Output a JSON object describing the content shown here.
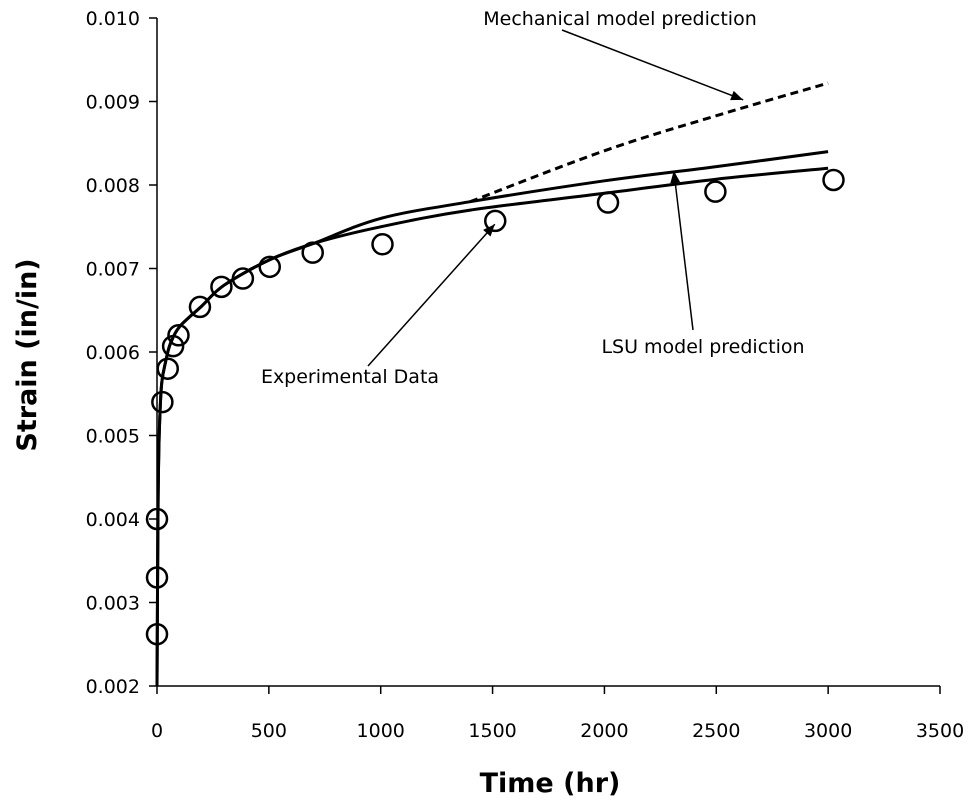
{
  "chart_data": {
    "type": "scatter",
    "title": "",
    "xlabel": "Time (hr)",
    "ylabel": "Strain (in/in)",
    "xlim": [
      0,
      3500
    ],
    "ylim": [
      0.002,
      0.01
    ],
    "x_ticks": [
      "0",
      "500",
      "1000",
      "1500",
      "2000",
      "2500",
      "3000",
      "3500"
    ],
    "y_ticks": [
      "0.002",
      "0.003",
      "0.004",
      "0.005",
      "0.006",
      "0.007",
      "0.008",
      "0.009",
      "0.010"
    ],
    "grid": false,
    "legend": "none",
    "series": [
      {
        "kind": "scatter",
        "marker": "open-circle",
        "x": [
          0,
          0,
          0,
          24,
          48,
          72,
          96,
          192,
          288,
          384,
          504,
          696,
          1008,
          1512,
          2016,
          2496,
          3024
        ],
        "y": [
          0.00262,
          0.0033,
          0.004,
          0.0054,
          0.0058,
          0.00607,
          0.0062,
          0.00654,
          0.00678,
          0.00688,
          0.00702,
          0.00719,
          0.00729,
          0.00757,
          0.00779,
          0.00792,
          0.00806
        ]
      },
      {
        "kind": "line",
        "style": "solid",
        "x": [
          0,
          5,
          10,
          20,
          40,
          60,
          100,
          200,
          300,
          500,
          700,
          1000,
          1400,
          2000,
          2500,
          3000
        ],
        "y": [
          0.002,
          0.0042,
          0.005,
          0.0056,
          0.0059,
          0.0061,
          0.0063,
          0.00655,
          0.0068,
          0.0071,
          0.0073,
          0.0075,
          0.0077,
          0.0079,
          0.00807,
          0.0082
        ]
      },
      {
        "kind": "line",
        "style": "solid",
        "x": [
          0,
          5,
          10,
          20,
          40,
          60,
          100,
          200,
          300,
          500,
          700,
          1000,
          1400,
          2000,
          2500,
          3000
        ],
        "y": [
          0.002,
          0.0042,
          0.005,
          0.0056,
          0.0059,
          0.0061,
          0.0063,
          0.00655,
          0.0068,
          0.0071,
          0.0073,
          0.0076,
          0.0078,
          0.00805,
          0.00822,
          0.0084
        ]
      },
      {
        "kind": "line",
        "style": "dashed",
        "x": [
          1400,
          2000,
          2500,
          3000
        ],
        "y": [
          0.0078,
          0.00841,
          0.00883,
          0.00922
        ]
      }
    ],
    "annotations": [
      {
        "text": "Mechanical model prediction",
        "arrow_to": [
          2620,
          0.00902
        ]
      },
      {
        "text": "Experimental Data",
        "arrow_to": [
          1510,
          0.00753
        ]
      },
      {
        "text": "LSU model prediction",
        "arrow_to": [
          2310,
          0.00817
        ]
      }
    ]
  }
}
